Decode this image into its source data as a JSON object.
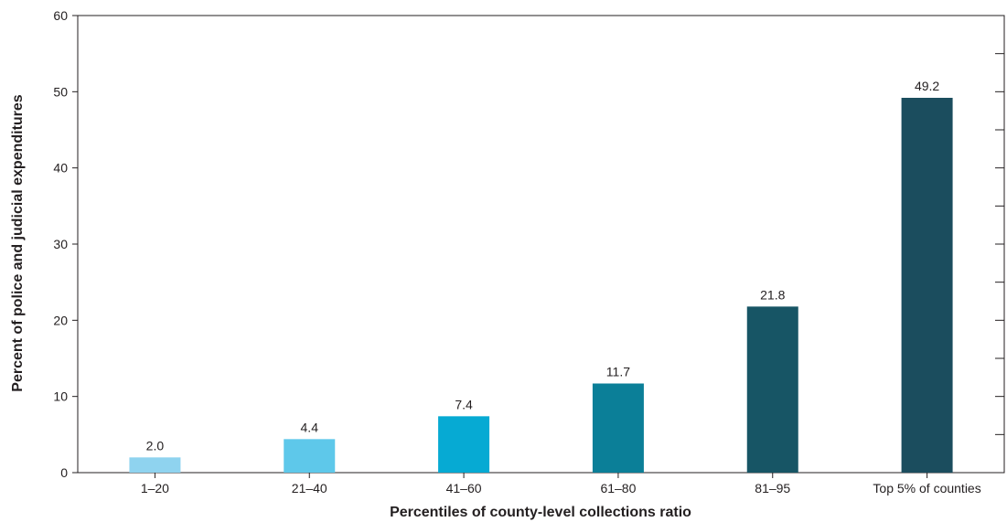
{
  "chart_data": {
    "type": "bar",
    "title": "",
    "xlabel": "Percentiles of county-level collections ratio",
    "ylabel": "Percent of police and judicial expenditures",
    "ylim": [
      0,
      60
    ],
    "yticks": [
      0,
      10,
      20,
      30,
      40,
      50,
      60
    ],
    "grid": false,
    "categories": [
      "1–20",
      "21–40",
      "41–60",
      "61–80",
      "81–95",
      "Top 5% of counties"
    ],
    "values": [
      2.0,
      4.4,
      7.4,
      11.7,
      21.8,
      49.2
    ],
    "value_labels": [
      "2.0",
      "4.4",
      "7.4",
      "11.7",
      "21.8",
      "49.2"
    ],
    "colors": [
      "#8fd3ef",
      "#5ec8ea",
      "#06aad3",
      "#0b7f98",
      "#175565",
      "#1b4d5e"
    ]
  }
}
